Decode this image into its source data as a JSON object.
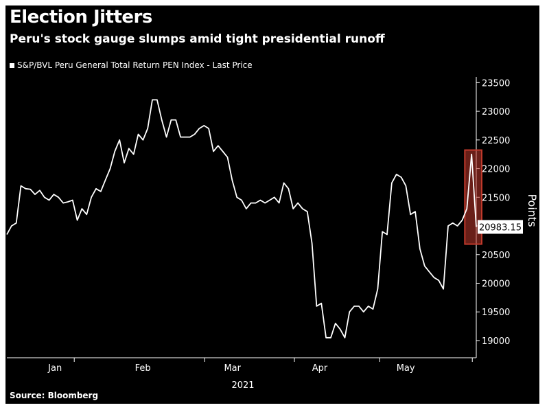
{
  "title": "Election Jitters",
  "subtitle": "Peru's stock gauge slumps amid tight presidential runoff",
  "source": "Source: Bloomberg",
  "colors": {
    "background": "#000000",
    "line": "#ffffff",
    "highlight": "#c0392b"
  },
  "chart_data": {
    "type": "line",
    "series": [
      {
        "name": "S&P/BVL Peru General Total Return PEN Index - Last Price",
        "values": [
          20850,
          21000,
          21050,
          21700,
          21650,
          21640,
          21550,
          21620,
          21500,
          21450,
          21550,
          21500,
          21400,
          21420,
          21450,
          21100,
          21300,
          21200,
          21500,
          21650,
          21600,
          21800,
          22000,
          22300,
          22500,
          22100,
          22350,
          22250,
          22600,
          22500,
          22700,
          23200,
          23200,
          22850,
          22550,
          22850,
          22850,
          22550,
          22550,
          22550,
          22600,
          22700,
          22750,
          22700,
          22300,
          22400,
          22300,
          22200,
          21800,
          21500,
          21450,
          21300,
          21400,
          21400,
          21450,
          21400,
          21450,
          21500,
          21400,
          21750,
          21650,
          21300,
          21400,
          21300,
          21250,
          20700,
          19600,
          19650,
          19050,
          19050,
          19300,
          19200,
          19050,
          19500,
          19600,
          19600,
          19500,
          19600,
          19550,
          19900,
          20900,
          20850,
          21750,
          21900,
          21850,
          21700,
          21200,
          21250,
          20600,
          20300,
          20200,
          20100,
          20050,
          19900,
          21000,
          21050,
          21000,
          21100,
          21300,
          22250,
          20983.15
        ]
      }
    ],
    "x_tick_labels": [
      "Jan",
      "Feb",
      "Mar",
      "Apr",
      "May"
    ],
    "x_year_label": "2021",
    "ylabel": "Points",
    "ylim": [
      18700,
      23600
    ],
    "y_ticks": [
      19000,
      19500,
      20000,
      20500,
      21000,
      21500,
      22000,
      22500,
      23000,
      23500
    ],
    "last_value_label": "20983.15",
    "grid": false,
    "legend_placement": "top-left"
  }
}
